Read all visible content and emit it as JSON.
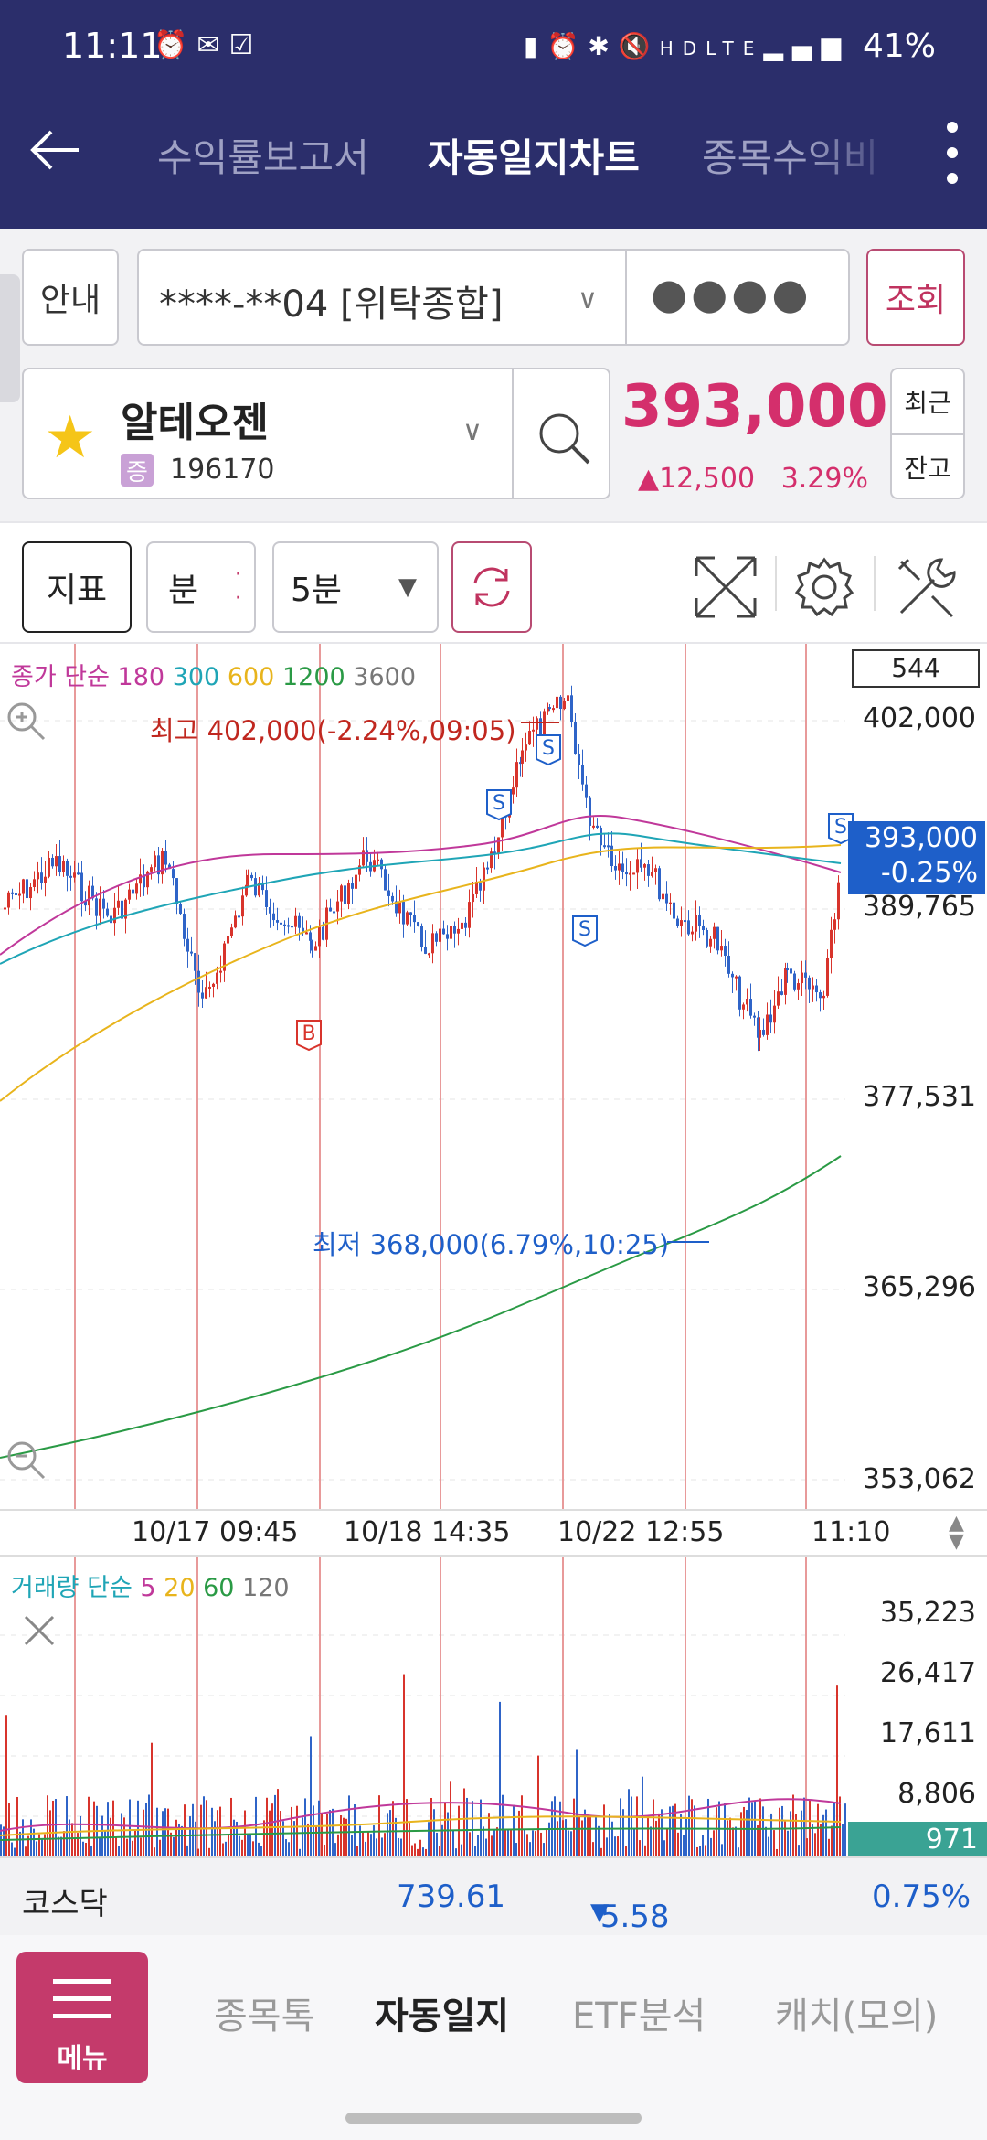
{
  "status_bar": {
    "time": "11:11",
    "left_icons": [
      "alarm-icon",
      "mail-icon",
      "check-icon"
    ],
    "right_icons": [
      "sim-icon",
      "alarm-icon",
      "bluetooth-icon",
      "mute-icon",
      "hd-voice-icon",
      "lte-icon",
      "signal-icon"
    ],
    "battery": "41%"
  },
  "nav": {
    "tabs": [
      {
        "label": "수익률보고서"
      },
      {
        "label": "자동일지차트"
      },
      {
        "label": "종목수익비"
      }
    ],
    "active_tab": "자동일지차트"
  },
  "account": {
    "guide_label": "안내",
    "account_value": "****-**04 [위탁종합]",
    "password_mask": "●●●●",
    "query_label": "조회"
  },
  "stock": {
    "name": "알테오젠",
    "market_badge": "증",
    "code": "196170",
    "price": "393,000",
    "change_amount": "12,500",
    "change_pct": "3.29%",
    "recent_label": "최근",
    "balance_label": "잔고"
  },
  "toolbar": {
    "indicator_label": "지표",
    "period_label": "분",
    "interval_value": "5분"
  },
  "chart": {
    "legend_prefix": "종가 단순",
    "ma": [
      {
        "label": "180",
        "color": "#c0389a"
      },
      {
        "label": "300",
        "color": "#1fa5b6"
      },
      {
        "label": "600",
        "color": "#e8b41c"
      },
      {
        "label": "1200",
        "color": "#2a9a45"
      },
      {
        "label": "3600",
        "color": "#777777"
      }
    ],
    "box_value": "544",
    "price_labels": [
      "402,000",
      "389,765",
      "377,531",
      "365,296",
      "353,062"
    ],
    "current_price": "393,000",
    "current_pct": "-0.25%",
    "high_annotation": "최고 402,000(-2.24%,09:05)",
    "low_annotation": "최저 368,000(6.79%,10:25)",
    "time_labels": [
      "10/17 09:45",
      "10/18 14:35",
      "10/22 12:55",
      "11:10"
    ],
    "marker_s": "S",
    "marker_b": "B",
    "up_color": "#d8342c",
    "down_color": "#2f64c8"
  },
  "volume": {
    "legend_prefix": "거래량 단순",
    "ma": [
      {
        "label": "5",
        "color": "#c0389a"
      },
      {
        "label": "20",
        "color": "#e8b41c"
      },
      {
        "label": "60",
        "color": "#2a9a45"
      },
      {
        "label": "120",
        "color": "#777777"
      }
    ],
    "labels": [
      "35,223",
      "26,417",
      "17,611",
      "8,806"
    ],
    "current": "971"
  },
  "index": {
    "name": "코스닥",
    "value": "739.61",
    "change": "5.58",
    "pct": "0.75%"
  },
  "bottom_nav": {
    "menu_label": "메뉴",
    "items": [
      {
        "label": "종목톡"
      },
      {
        "label": "자동일지"
      },
      {
        "label": "ETF분석"
      },
      {
        "label": "캐치(모의)"
      }
    ]
  }
}
